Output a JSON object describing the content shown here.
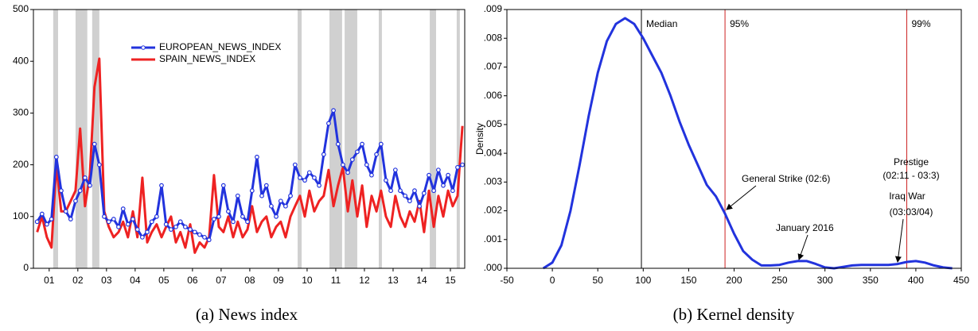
{
  "chart_data": [
    {
      "type": "line",
      "caption": "(a) News index",
      "x": [
        1.08,
        1.25,
        1.42,
        1.58,
        1.75,
        1.92,
        2.08,
        2.25,
        2.42,
        2.58,
        2.75,
        2.92,
        3.08,
        3.25,
        3.42,
        3.58,
        3.75,
        3.92,
        4.08,
        4.25,
        4.42,
        4.58,
        4.75,
        4.92,
        5.08,
        5.25,
        5.42,
        5.58,
        5.75,
        5.92,
        6.08,
        6.25,
        6.42,
        6.58,
        6.75,
        6.92,
        7.08,
        7.25,
        7.42,
        7.58,
        7.75,
        7.92,
        8.08,
        8.25,
        8.42,
        8.58,
        8.75,
        8.92,
        9.08,
        9.25,
        9.42,
        9.58,
        9.75,
        9.92,
        10.08,
        10.25,
        10.42,
        10.58,
        10.75,
        10.92,
        11.08,
        11.25,
        11.42,
        11.58,
        11.75,
        11.92,
        12.08,
        12.25,
        12.42,
        12.58,
        12.75,
        12.92,
        13.08,
        13.25,
        13.42,
        13.58,
        13.75,
        13.92,
        14.08,
        14.25,
        14.42,
        14.58,
        14.75,
        14.92,
        15.08,
        15.25,
        15.42,
        15.58,
        15.75,
        15.92
      ],
      "series": [
        {
          "name": "EUROPEAN_NEWS_INDEX",
          "color": "#2233dd",
          "marker": "circle",
          "values": [
            90,
            105,
            85,
            95,
            215,
            150,
            110,
            95,
            130,
            150,
            175,
            160,
            240,
            200,
            100,
            90,
            95,
            80,
            115,
            85,
            95,
            75,
            60,
            70,
            90,
            100,
            160,
            85,
            75,
            80,
            90,
            80,
            75,
            70,
            65,
            60,
            55,
            95,
            100,
            160,
            110,
            90,
            140,
            100,
            90,
            150,
            215,
            140,
            160,
            120,
            100,
            130,
            120,
            140,
            200,
            175,
            170,
            185,
            175,
            160,
            220,
            280,
            305,
            240,
            200,
            185,
            210,
            225,
            240,
            200,
            180,
            220,
            240,
            170,
            150,
            190,
            150,
            140,
            130,
            150,
            120,
            145,
            180,
            150,
            190,
            160,
            180,
            150,
            195,
            200
          ]
        },
        {
          "name": "SPAIN_NEWS_INDEX",
          "color": "#ee2222",
          "values": [
            70,
            100,
            60,
            40,
            200,
            110,
            110,
            130,
            150,
            270,
            120,
            180,
            350,
            405,
            110,
            80,
            60,
            70,
            90,
            60,
            110,
            60,
            175,
            50,
            70,
            85,
            60,
            80,
            100,
            50,
            70,
            40,
            85,
            30,
            50,
            40,
            60,
            180,
            80,
            70,
            100,
            60,
            90,
            60,
            75,
            120,
            70,
            90,
            100,
            60,
            80,
            90,
            60,
            100,
            120,
            140,
            100,
            150,
            110,
            130,
            140,
            190,
            120,
            160,
            195,
            110,
            170,
            100,
            160,
            80,
            140,
            110,
            150,
            100,
            80,
            140,
            100,
            80,
            110,
            90,
            130,
            70,
            150,
            80,
            140,
            100,
            150,
            120,
            140,
            275
          ]
        }
      ],
      "shaded_regions": [
        [
          1.64,
          1.81
        ],
        [
          2.42,
          2.83
        ],
        [
          3.0,
          3.25
        ],
        [
          10.17,
          10.31
        ],
        [
          11.28,
          11.72
        ],
        [
          11.81,
          12.25
        ],
        [
          13.0,
          13.11
        ],
        [
          14.78,
          15.0
        ],
        [
          15.72,
          15.83
        ]
      ],
      "shade_color": "#d0d0d0",
      "xlim": [
        0.95,
        16
      ],
      "xticks": [
        {
          "value": 1.5,
          "label": "01"
        },
        {
          "value": 2.5,
          "label": "02"
        },
        {
          "value": 3.5,
          "label": "03"
        },
        {
          "value": 4.5,
          "label": "04"
        },
        {
          "value": 5.5,
          "label": "05"
        },
        {
          "value": 6.5,
          "label": "06"
        },
        {
          "value": 7.5,
          "label": "07"
        },
        {
          "value": 8.5,
          "label": "08"
        },
        {
          "value": 9.5,
          "label": "09"
        },
        {
          "value": 10.5,
          "label": "10"
        },
        {
          "value": 11.5,
          "label": "11"
        },
        {
          "value": 12.5,
          "label": "12"
        },
        {
          "value": 13.5,
          "label": "13"
        },
        {
          "value": 14.5,
          "label": "14"
        },
        {
          "value": 15.5,
          "label": "15"
        }
      ],
      "ylim": [
        0,
        500
      ],
      "yticks": [
        0,
        100,
        200,
        300,
        400,
        500
      ],
      "grid": false
    },
    {
      "type": "line",
      "caption": "(b) Kernel density",
      "ylabel": "Density",
      "x": [
        -10,
        0,
        10,
        20,
        30,
        40,
        50,
        60,
        70,
        80,
        90,
        100,
        110,
        120,
        130,
        140,
        150,
        160,
        170,
        180,
        190,
        200,
        210,
        220,
        230,
        240,
        250,
        260,
        270,
        280,
        290,
        300,
        310,
        320,
        330,
        340,
        350,
        360,
        370,
        380,
        390,
        400,
        410,
        420,
        430,
        440
      ],
      "series": [
        {
          "name": "Density",
          "color": "#2233dd",
          "values": [
            0,
            0.0002,
            0.0008,
            0.002,
            0.0036,
            0.0053,
            0.0068,
            0.0079,
            0.0085,
            0.0087,
            0.0085,
            0.008,
            0.0074,
            0.0068,
            0.006,
            0.0051,
            0.0043,
            0.0036,
            0.0029,
            0.0025,
            0.0019,
            0.0012,
            0.0006,
            0.0003,
            0.0001,
            0.0001,
            0.00012,
            0.0002,
            0.00025,
            0.00025,
            0.00015,
            3e-05,
            0,
            5e-05,
            0.0001,
            0.00012,
            0.00012,
            0.00012,
            0.00012,
            0.00015,
            0.00022,
            0.00025,
            0.0002,
            0.0001,
            3e-05,
            0
          ]
        }
      ],
      "vlines": [
        {
          "value": 98,
          "label": "Median",
          "color": "#000000"
        },
        {
          "value": 190,
          "label": "95%",
          "color": "#cc2222"
        },
        {
          "value": 390,
          "label": "99%",
          "color": "#cc2222"
        }
      ],
      "annotations": [
        "General Strike (02:6)",
        "January 2016",
        "Prestige",
        "(02:11 - 03:3)",
        "Iraq War",
        "(03:03/04)"
      ],
      "xlim": [
        -50,
        450
      ],
      "xticks": [
        -50,
        0,
        50,
        100,
        150,
        200,
        250,
        300,
        350,
        400,
        450
      ],
      "ylim": [
        0,
        0.009
      ],
      "yticks": [
        {
          "value": 0,
          "label": ".000"
        },
        {
          "value": 0.001,
          "label": ".001"
        },
        {
          "value": 0.002,
          "label": ".002"
        },
        {
          "value": 0.003,
          "label": ".003"
        },
        {
          "value": 0.004,
          "label": ".004"
        },
        {
          "value": 0.005,
          "label": ".005"
        },
        {
          "value": 0.006,
          "label": ".006"
        },
        {
          "value": 0.007,
          "label": ".007"
        },
        {
          "value": 0.008,
          "label": ".008"
        },
        {
          "value": 0.009,
          "label": ".009"
        }
      ],
      "grid": false
    }
  ]
}
